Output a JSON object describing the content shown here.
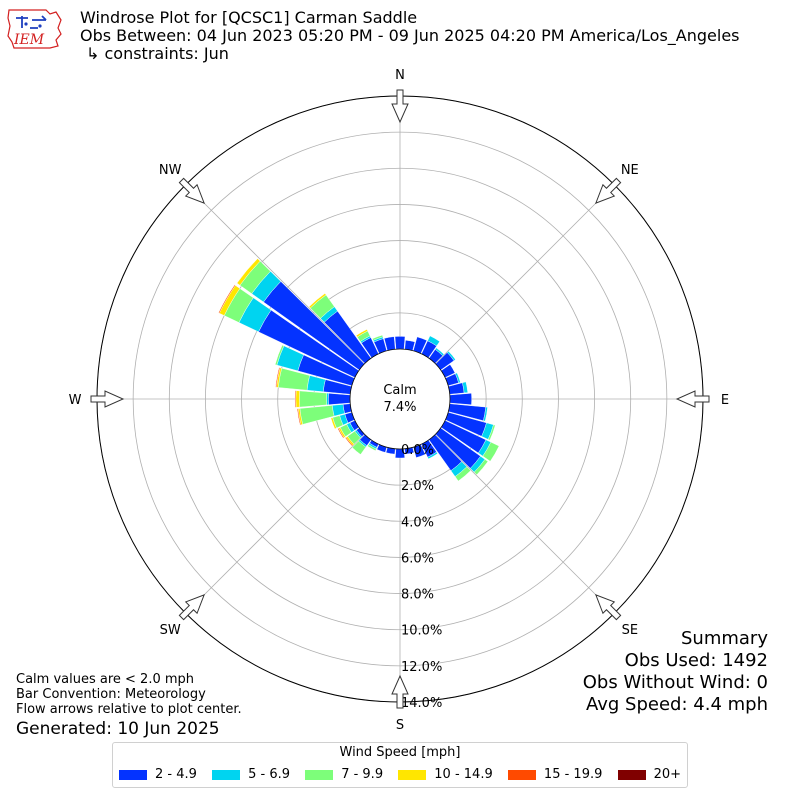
{
  "header": {
    "title": "Windrose Plot for [QCSC1] Carman Saddle",
    "subtitle": "Obs Between: 04 Jun 2023 05:20 PM - 09 Jun 2025 04:20 PM America/Los_Angeles",
    "constraints": "↳ constraints: Jun",
    "logo_text": "IEM"
  },
  "summary": {
    "heading": "Summary",
    "obs_used": "Obs Used: 1492",
    "obs_without_wind": "Obs Without Wind: 0",
    "avg_speed": "Avg Speed: 4.4 mph"
  },
  "notes": {
    "calm_note": "Calm values are < 2.0 mph",
    "bar_convention": "Bar Convention: Meteorology",
    "flow_arrows": "Flow arrows relative to plot center.",
    "generated": "Generated: 10 Jun 2025"
  },
  "legend": {
    "title": "Wind Speed [mph]",
    "items": [
      {
        "label": "2 - 4.9",
        "color": "#0433ff"
      },
      {
        "label": "5 - 6.9",
        "color": "#00d4f0"
      },
      {
        "label": "7 - 9.9",
        "color": "#7dfe7a"
      },
      {
        "label": "10 - 14.9",
        "color": "#ffe600"
      },
      {
        "label": "15 - 19.9",
        "color": "#ff4a00"
      },
      {
        "label": "20+",
        "color": "#800000"
      }
    ]
  },
  "chart_data": {
    "type": "windrose",
    "direction_labels": [
      "N",
      "NE",
      "E",
      "SE",
      "S",
      "SW",
      "W",
      "NW"
    ],
    "radial_tick_labels": [
      "0.0%",
      "2.0%",
      "4.0%",
      "6.0%",
      "8.0%",
      "10.0%",
      "12.0%",
      "14.0%"
    ],
    "rmax": 14.0,
    "calm_label": "Calm",
    "calm_percent": "7.4%",
    "bin_directions_deg": [
      0,
      10,
      20,
      30,
      40,
      50,
      60,
      70,
      80,
      90,
      100,
      110,
      120,
      130,
      140,
      150,
      160,
      170,
      180,
      190,
      200,
      210,
      220,
      230,
      240,
      250,
      260,
      270,
      280,
      290,
      300,
      310,
      320,
      330,
      340,
      350
    ],
    "series": [
      {
        "name": "2 - 4.9",
        "color": "#0433ff",
        "values": [
          0.7,
          0.5,
          0.8,
          0.8,
          0.6,
          0.9,
          0.6,
          0.6,
          0.8,
          1.2,
          2.0,
          2.2,
          2.5,
          2.7,
          2.1,
          0.8,
          0.6,
          0.3,
          0.5,
          0.3,
          0.3,
          0.2,
          0.4,
          0.2,
          0.3,
          0.4,
          0.4,
          1.2,
          1.5,
          3.1,
          5.9,
          6.5,
          3.2,
          1.0,
          0.7,
          0.7
        ]
      },
      {
        "name": "5 - 6.9",
        "color": "#00d4f0",
        "values": [
          0.0,
          0.0,
          0.0,
          0.3,
          0.1,
          0.1,
          0.0,
          0.1,
          0.2,
          0.0,
          0.1,
          0.4,
          0.3,
          0.3,
          0.4,
          0.1,
          0.0,
          0.0,
          0.0,
          0.0,
          0.0,
          0.1,
          0.1,
          0.1,
          0.2,
          0.3,
          0.6,
          0.1,
          0.9,
          1.2,
          1.2,
          0.8,
          0.3,
          0.1,
          0.1,
          0.0
        ]
      },
      {
        "name": "7 - 9.9",
        "color": "#7dfe7a",
        "values": [
          0.0,
          0.0,
          0.0,
          0.0,
          0.0,
          0.0,
          0.0,
          0.0,
          0.0,
          0.0,
          0.0,
          0.1,
          0.5,
          0.2,
          0.3,
          0.0,
          0.0,
          0.0,
          0.0,
          0.0,
          0.0,
          0.1,
          0.5,
          0.5,
          0.4,
          0.4,
          1.8,
          1.5,
          1.6,
          0.1,
          0.9,
          0.8,
          0.8,
          0.3,
          0.1,
          0.0
        ]
      },
      {
        "name": "10 - 14.9",
        "color": "#ffe600",
        "values": [
          0.0,
          0.0,
          0.0,
          0.0,
          0.0,
          0.0,
          0.0,
          0.0,
          0.0,
          0.0,
          0.0,
          0.0,
          0.0,
          0.0,
          0.0,
          0.0,
          0.0,
          0.0,
          0.0,
          0.0,
          0.0,
          0.0,
          0.0,
          0.1,
          0.1,
          0.1,
          0.1,
          0.2,
          0.1,
          0.0,
          0.3,
          0.2,
          0.1,
          0.1,
          0.0,
          0.0
        ]
      },
      {
        "name": "15 - 19.9",
        "color": "#ff4a00",
        "values": [
          0.0,
          0.0,
          0.0,
          0.0,
          0.0,
          0.0,
          0.0,
          0.0,
          0.0,
          0.0,
          0.0,
          0.0,
          0.0,
          0.0,
          0.0,
          0.0,
          0.0,
          0.0,
          0.0,
          0.0,
          0.0,
          0.0,
          0.0,
          0.05,
          0.05,
          0.0,
          0.05,
          0.05,
          0.05,
          0.0,
          0.05,
          0.0,
          0.0,
          0.0,
          0.0,
          0.0
        ]
      },
      {
        "name": "20+",
        "color": "#800000",
        "values": [
          0.0,
          0.0,
          0.0,
          0.0,
          0.0,
          0.0,
          0.0,
          0.0,
          0.0,
          0.0,
          0.0,
          0.0,
          0.0,
          0.0,
          0.0,
          0.0,
          0.0,
          0.0,
          0.0,
          0.0,
          0.0,
          0.0,
          0.0,
          0.0,
          0.0,
          0.0,
          0.0,
          0.0,
          0.0,
          0.0,
          0.0,
          0.0,
          0.0,
          0.0,
          0.0,
          0.0
        ]
      }
    ]
  }
}
